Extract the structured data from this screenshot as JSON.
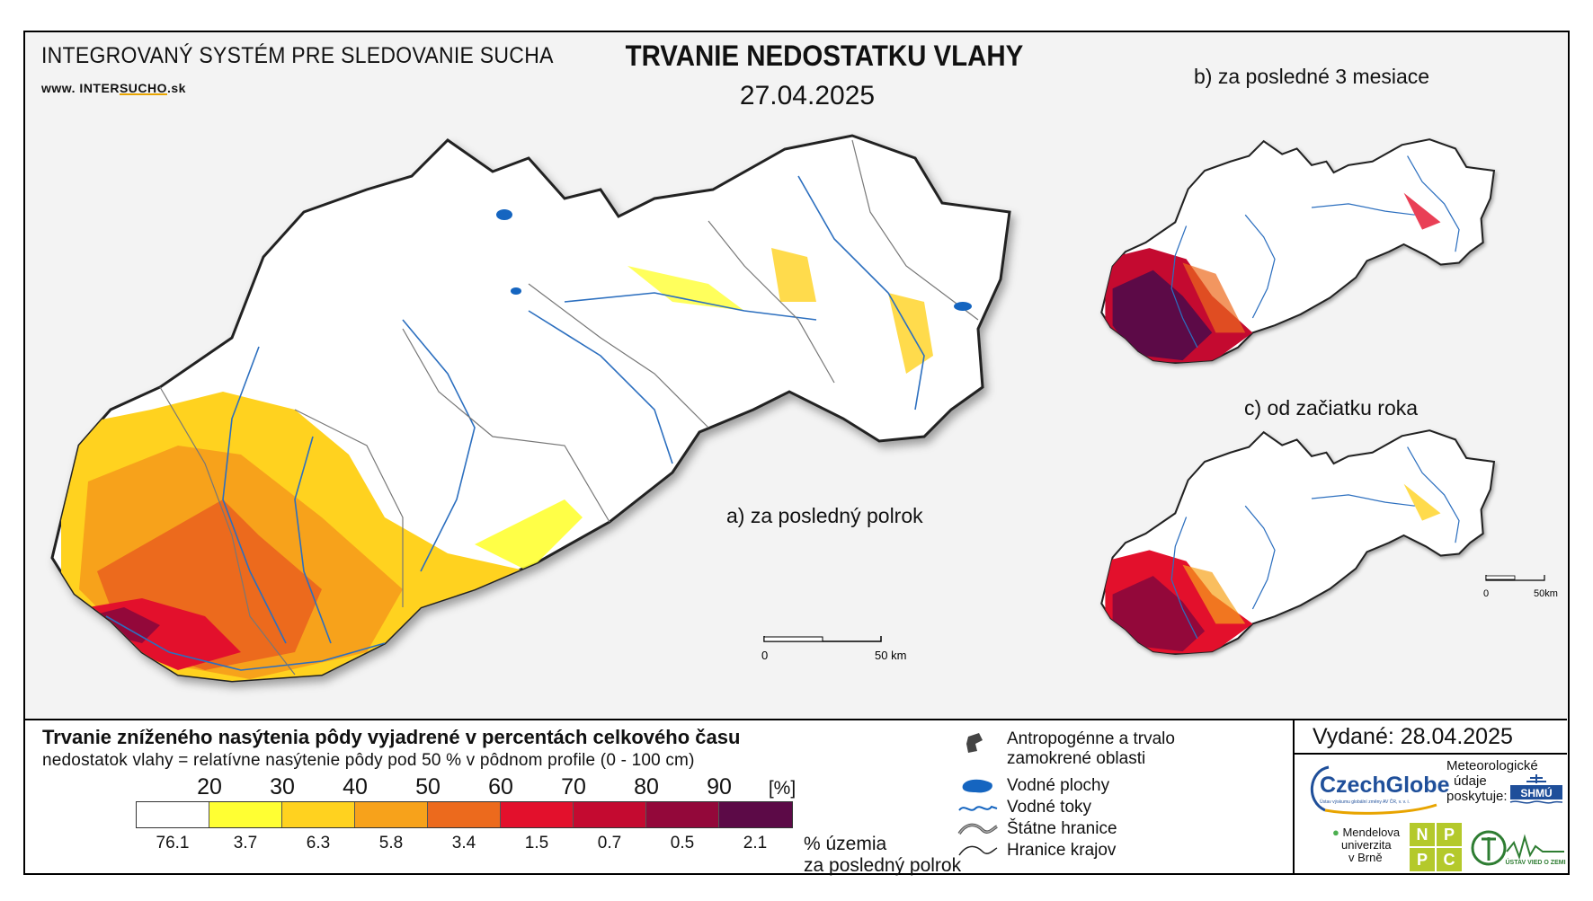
{
  "header": {
    "org_title": "INTEGROVANÝ SYSTÉM PRE SLEDOVANIE SUCHA",
    "website_pre": "www. INTER",
    "website_mid": "SUCHO",
    "website_post": ".sk",
    "map_title": "TRVANIE NEDOSTATKU VLAHY",
    "map_date": "27.04.2025"
  },
  "maps": {
    "main_label": "a) za posledný polrok",
    "inset_b_label": "b) za posledné 3 mesiace",
    "inset_c_label": "c) od začiatku roka",
    "main_scale": {
      "zero": "0",
      "end": "50 km"
    },
    "inset_scale": {
      "zero": "0",
      "end": "50km"
    }
  },
  "legend": {
    "title": "Trvanie zníženého nasýtenia pôdy vyjadrené v percentách celkového času",
    "subtitle": "nedostatok vlahy = relatívne nasýtenie pôdy pod 50 % v pôdnom profile (0 - 100 cm)",
    "ticks": [
      "20",
      "30",
      "40",
      "50",
      "60",
      "70",
      "80",
      "90",
      "[%]"
    ],
    "colors": [
      "#ffffff",
      "#ffff33",
      "#ffd21f",
      "#f7a21b",
      "#ec6a1d",
      "#e3102c",
      "#c40a30",
      "#93083a",
      "#5c0a47"
    ],
    "percentages": [
      "76.1",
      "3.7",
      "6.3",
      "5.8",
      "3.4",
      "1.5",
      "0.7",
      "0.5",
      "2.1"
    ],
    "share_caption_line1": "% územia",
    "share_caption_line2": "za posledný polrok"
  },
  "symbols": {
    "anthropogenic_line1": "Antropogénne a trvalo",
    "anthropogenic_line2": "zamokrené oblasti",
    "water_bodies": "Vodné plochy",
    "rivers": "Vodné toky",
    "state_border": "Štátne hranice",
    "region_border": "Hranice krajov"
  },
  "issued": "Vydané: 28.04.2025",
  "providers": {
    "czechglobe": "CzechGlobe",
    "czechglobe_sub": "Ústav výskumu globální změny AV ČR, v. v. i.",
    "meteo_line1": "Meteorologické",
    "meteo_line2": "údaje",
    "meteo_line3": "poskytuje:",
    "shmu": "SHMÚ",
    "mendel_line1": "Mendelova",
    "mendel_line2": "univerzita",
    "mendel_line3": "v Brně",
    "nppc": [
      "N",
      "P",
      "P",
      "C"
    ],
    "uvz": "ÚSTAV VIED O ZEMI"
  }
}
